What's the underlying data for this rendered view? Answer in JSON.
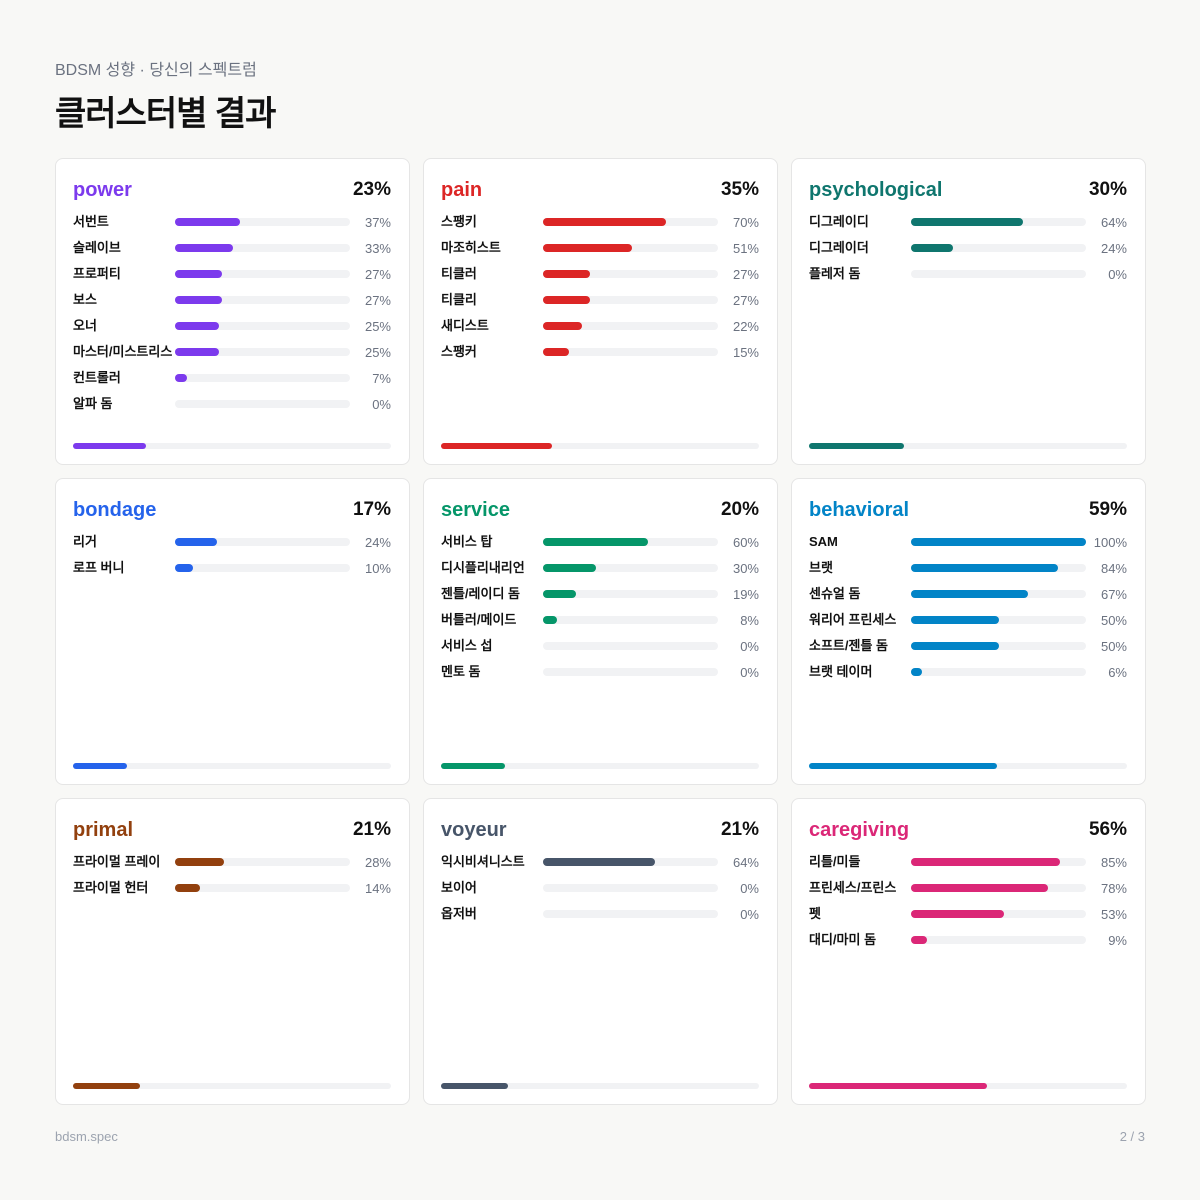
{
  "header": {
    "subtitle": "BDSM 성향 · 당신의 스펙트럼",
    "title": "클러스터별 결과"
  },
  "clusters": [
    {
      "name": "power",
      "color": "#7c3aed",
      "percent": 23,
      "percent_label": "23%",
      "items": [
        {
          "label": "서번트",
          "value": 37,
          "value_label": "37%"
        },
        {
          "label": "슬레이브",
          "value": 33,
          "value_label": "33%"
        },
        {
          "label": "프로퍼티",
          "value": 27,
          "value_label": "27%"
        },
        {
          "label": "보스",
          "value": 27,
          "value_label": "27%"
        },
        {
          "label": "오너",
          "value": 25,
          "value_label": "25%"
        },
        {
          "label": "마스터/미스트리스",
          "value": 25,
          "value_label": "25%"
        },
        {
          "label": "컨트롤러",
          "value": 7,
          "value_label": "7%"
        },
        {
          "label": "알파 돔",
          "value": 0,
          "value_label": "0%"
        }
      ]
    },
    {
      "name": "pain",
      "color": "#dc2626",
      "percent": 35,
      "percent_label": "35%",
      "items": [
        {
          "label": "스팽키",
          "value": 70,
          "value_label": "70%"
        },
        {
          "label": "마조히스트",
          "value": 51,
          "value_label": "51%"
        },
        {
          "label": "티클러",
          "value": 27,
          "value_label": "27%"
        },
        {
          "label": "티클리",
          "value": 27,
          "value_label": "27%"
        },
        {
          "label": "새디스트",
          "value": 22,
          "value_label": "22%"
        },
        {
          "label": "스팽커",
          "value": 15,
          "value_label": "15%"
        }
      ]
    },
    {
      "name": "psychological",
      "color": "#0f766e",
      "percent": 30,
      "percent_label": "30%",
      "items": [
        {
          "label": "디그레이디",
          "value": 64,
          "value_label": "64%"
        },
        {
          "label": "디그레이더",
          "value": 24,
          "value_label": "24%"
        },
        {
          "label": "플레저 돔",
          "value": 0,
          "value_label": "0%"
        }
      ]
    },
    {
      "name": "bondage",
      "color": "#2563eb",
      "percent": 17,
      "percent_label": "17%",
      "items": [
        {
          "label": "리거",
          "value": 24,
          "value_label": "24%"
        },
        {
          "label": "로프 버니",
          "value": 10,
          "value_label": "10%"
        }
      ]
    },
    {
      "name": "service",
      "color": "#059669",
      "percent": 20,
      "percent_label": "20%",
      "items": [
        {
          "label": "서비스 탑",
          "value": 60,
          "value_label": "60%"
        },
        {
          "label": "디시플리내리언",
          "value": 30,
          "value_label": "30%"
        },
        {
          "label": "젠틀/레이디 돔",
          "value": 19,
          "value_label": "19%"
        },
        {
          "label": "버틀러/메이드",
          "value": 8,
          "value_label": "8%"
        },
        {
          "label": "서비스 섭",
          "value": 0,
          "value_label": "0%"
        },
        {
          "label": "멘토 돔",
          "value": 0,
          "value_label": "0%"
        }
      ]
    },
    {
      "name": "behavioral",
      "color": "#0284c7",
      "percent": 59,
      "percent_label": "59%",
      "items": [
        {
          "label": "SAM",
          "value": 100,
          "value_label": "100%"
        },
        {
          "label": "브랫",
          "value": 84,
          "value_label": "84%"
        },
        {
          "label": "센슈얼 돔",
          "value": 67,
          "value_label": "67%"
        },
        {
          "label": "워리어 프린세스",
          "value": 50,
          "value_label": "50%"
        },
        {
          "label": "소프트/젠틀 돔",
          "value": 50,
          "value_label": "50%"
        },
        {
          "label": "브랫 테이머",
          "value": 6,
          "value_label": "6%"
        }
      ]
    },
    {
      "name": "primal",
      "color": "#92400e",
      "percent": 21,
      "percent_label": "21%",
      "items": [
        {
          "label": "프라이멀 프레이",
          "value": 28,
          "value_label": "28%"
        },
        {
          "label": "프라이멀 헌터",
          "value": 14,
          "value_label": "14%"
        }
      ]
    },
    {
      "name": "voyeur",
      "color": "#475569",
      "percent": 21,
      "percent_label": "21%",
      "items": [
        {
          "label": "익시비셔니스트",
          "value": 64,
          "value_label": "64%"
        },
        {
          "label": "보이어",
          "value": 0,
          "value_label": "0%"
        },
        {
          "label": "옵저버",
          "value": 0,
          "value_label": "0%"
        }
      ]
    },
    {
      "name": "caregiving",
      "color": "#db2777",
      "percent": 56,
      "percent_label": "56%",
      "items": [
        {
          "label": "리틀/미들",
          "value": 85,
          "value_label": "85%"
        },
        {
          "label": "프린세스/프린스",
          "value": 78,
          "value_label": "78%"
        },
        {
          "label": "펫",
          "value": 53,
          "value_label": "53%"
        },
        {
          "label": "대디/마미 돔",
          "value": 9,
          "value_label": "9%"
        }
      ]
    }
  ],
  "footer": {
    "left": "bdsm.spec",
    "right": "2 / 3"
  }
}
